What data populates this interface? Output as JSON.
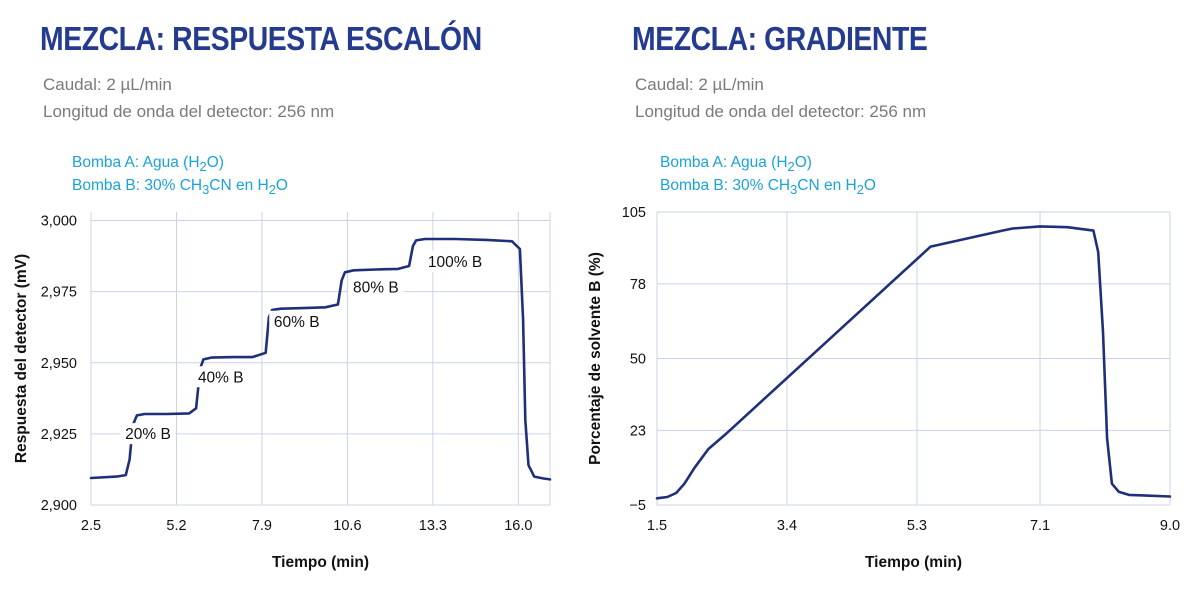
{
  "colors": {
    "title": "#243b8f",
    "pump": "#1aa3d9",
    "line": "#1f2f7a",
    "grid": "#c9d3e6"
  },
  "chart_data": [
    {
      "type": "line",
      "title": "MEZCLA: RESPUESTA ESCALÓN",
      "subtitle": [
        "Caudal: 2 µL/min",
        "Longitud de onda del detector: 256 nm"
      ],
      "pumps": [
        {
          "prefix": "Bomba A: Agua (H",
          "sub": "2",
          "suffix": "O)"
        },
        {
          "prefix": "Bomba B: 30% CH",
          "sub": "3",
          "mid": "CN en H",
          "sub2": "2",
          "suffix": "O"
        }
      ],
      "xlabel": "Tiempo (min)",
      "ylabel": "Respuesta del detector (mV)",
      "xlim": [
        2.5,
        17.0
      ],
      "ylim": [
        2900,
        3003
      ],
      "xticks": [
        2.5,
        5.2,
        7.9,
        10.6,
        13.3,
        16.0
      ],
      "xtick_labels": [
        "2.5",
        "5.2",
        "7.9",
        "10.6",
        "13.3",
        "16.0"
      ],
      "yticks": [
        2900,
        2925,
        2950,
        2975,
        3000
      ],
      "ytick_labels": [
        "2,900",
        "2,925",
        "2,950",
        "2,975",
        "3,000"
      ],
      "grid": true,
      "annotations": [
        {
          "text": "20% B",
          "x": 4.3,
          "y": 2923.5
        },
        {
          "text": "40% B",
          "x": 6.6,
          "y": 2943.5
        },
        {
          "text": "60% B",
          "x": 9.0,
          "y": 2963.0
        },
        {
          "text": "80% B",
          "x": 11.5,
          "y": 2975.0
        },
        {
          "text": "100% B",
          "x": 14.0,
          "y": 2984.0
        }
      ],
      "series": [
        {
          "x": [
            2.5,
            3.3,
            3.6,
            3.72,
            3.82,
            3.95,
            4.2,
            4.9,
            5.6,
            5.82,
            5.95,
            6.05,
            6.3,
            7.0,
            7.6,
            8.02,
            8.12,
            8.22,
            8.5,
            9.2,
            9.9,
            10.3,
            10.42,
            10.52,
            10.8,
            11.5,
            12.2,
            12.55,
            12.67,
            12.77,
            13.05,
            14.0,
            15.0,
            15.8,
            16.05,
            16.15,
            16.22,
            16.32,
            16.5,
            16.8,
            17.0
          ],
          "y": [
            2909.5,
            2910.0,
            2910.5,
            2916.0,
            2928.0,
            2931.5,
            2932.0,
            2932.0,
            2932.2,
            2934.0,
            2948.0,
            2951.2,
            2951.8,
            2952.0,
            2952.0,
            2953.5,
            2966.0,
            2968.6,
            2969.0,
            2969.2,
            2969.5,
            2970.5,
            2979.0,
            2981.8,
            2982.5,
            2982.8,
            2983.0,
            2984.0,
            2991.0,
            2993.0,
            2993.5,
            2993.5,
            2993.2,
            2992.7,
            2990.0,
            2965.0,
            2930.0,
            2914.0,
            2910.0,
            2909.3,
            2909.0
          ]
        }
      ]
    },
    {
      "type": "line",
      "title": "MEZCLA: GRADIENTE",
      "subtitle": [
        "Caudal: 2 µL/min",
        "Longitud de onda del detector: 256 nm"
      ],
      "pumps": [
        {
          "prefix": "Bomba A: Agua (H",
          "sub": "2",
          "suffix": "O)"
        },
        {
          "prefix": "Bomba B: 30% CH",
          "sub": "3",
          "mid": "CN en H",
          "sub2": "2",
          "suffix": "O"
        }
      ],
      "xlabel": "Tiempo (min)",
      "ylabel": "Porcentaje de solvente B (%)",
      "xlim": [
        1.5,
        9.0
      ],
      "ylim": [
        -5,
        105
      ],
      "xticks": [
        1.5,
        3.4,
        5.3,
        7.1,
        9.0
      ],
      "xtick_labels": [
        "1.5",
        "3.4",
        "5.3",
        "7.1",
        "9.0"
      ],
      "yticks": [
        -5,
        23,
        50,
        78,
        105
      ],
      "ytick_labels": [
        "−5",
        "23",
        "50",
        "78",
        "105"
      ],
      "grid": true,
      "series": [
        {
          "x": [
            1.5,
            1.65,
            1.78,
            1.9,
            2.05,
            2.25,
            2.5,
            3.5,
            4.5,
            5.5,
            6.55,
            6.7,
            7.1,
            7.5,
            7.88,
            7.95,
            8.02,
            8.08,
            8.15,
            8.25,
            8.4,
            8.7,
            9.0
          ],
          "y": [
            -2.5,
            -2.0,
            -0.5,
            3.0,
            9.0,
            16.0,
            21.5,
            45.0,
            68.5,
            92.0,
            98.0,
            98.8,
            99.6,
            99.3,
            98.0,
            90.0,
            60.0,
            20.0,
            3.0,
            0.0,
            -1.2,
            -1.5,
            -1.8
          ]
        }
      ]
    }
  ]
}
